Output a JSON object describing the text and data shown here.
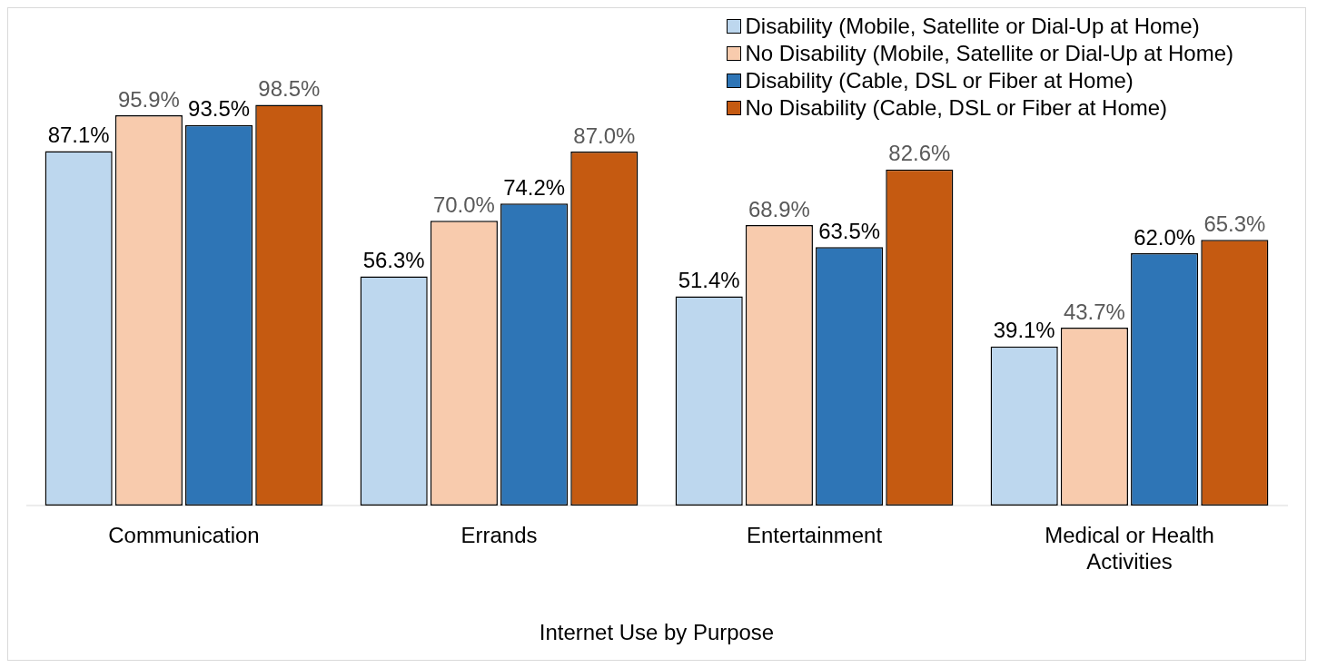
{
  "chart_data": {
    "type": "bar",
    "xlabel": "Internet Use by Purpose",
    "categories": [
      "Communication",
      "Errands",
      "Entertainment",
      "Medical or Health Activities"
    ],
    "series": [
      {
        "name": "Disability (Mobile, Satellite or Dial-Up at Home)",
        "color": "#bdd7ee",
        "values": [
          87.1,
          56.3,
          51.4,
          39.1
        ],
        "value_labels": [
          "87.1%",
          "56.3%",
          "51.4%",
          "39.1%"
        ]
      },
      {
        "name": "No Disability (Mobile, Satellite or Dial-Up at Home)",
        "color": "#f8cbad",
        "values": [
          95.9,
          70.0,
          68.9,
          43.7
        ],
        "value_labels": [
          "95.9%",
          "70.0%",
          "68.9%",
          "43.7%"
        ]
      },
      {
        "name": "Disability (Cable, DSL or Fiber at Home)",
        "color": "#2e75b6",
        "values": [
          93.5,
          74.2,
          63.5,
          62.0
        ],
        "value_labels": [
          "93.5%",
          "74.2%",
          "63.5%",
          "62.0%"
        ]
      },
      {
        "name": "No Disability (Cable, DSL or Fiber at Home)",
        "color": "#c55a11",
        "values": [
          98.5,
          87.0,
          82.6,
          65.3
        ],
        "value_labels": [
          "98.5%",
          "87.0%",
          "82.6%",
          "65.3%"
        ]
      }
    ],
    "legend": "top right",
    "grid": false
  }
}
